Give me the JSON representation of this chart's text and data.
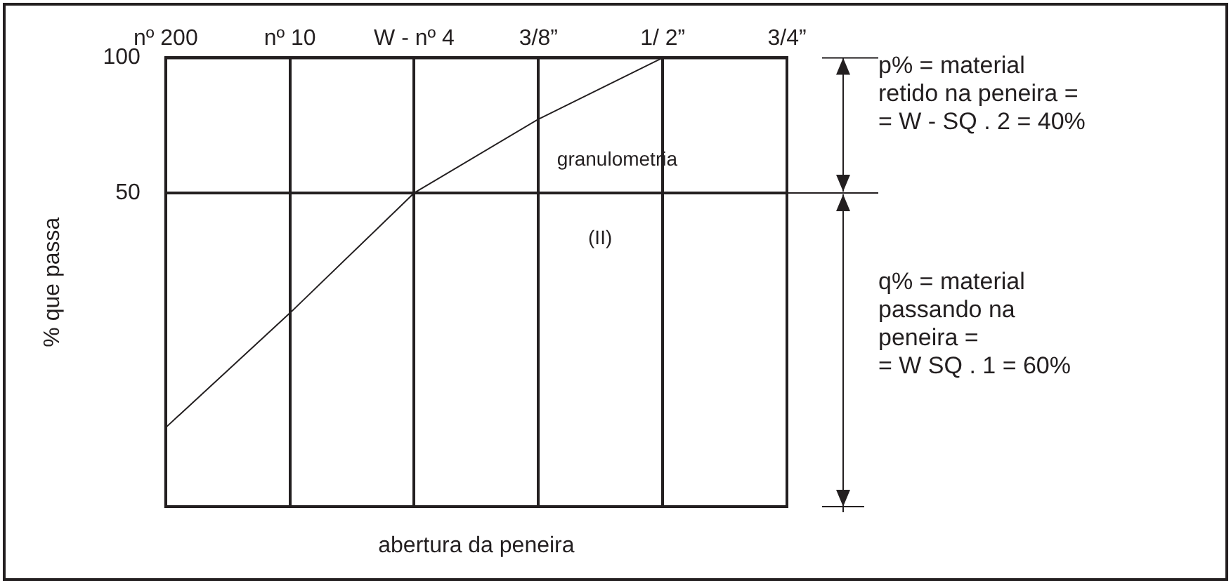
{
  "chart_data": {
    "type": "line",
    "xlabel": "abertura da peneira",
    "ylabel": "% que passa",
    "categories": [
      "nº 200",
      "nº 10",
      "W - nº 4",
      "3/8”",
      "1/ 2”",
      "3/4”"
    ],
    "series": [
      {
        "color": "#231f20",
        "values": [
          15,
          27,
          50,
          73,
          100,
          null
        ]
      }
    ],
    "log": "y",
    "ylim": [
      10,
      100
    ],
    "yticks": [
      50,
      100
    ],
    "grid": true,
    "legend": false,
    "marker": "none",
    "line_style": "solid",
    "annotations": [
      "granulometria",
      "(II)",
      "p% = material\nretido na peneira =\n= W - SQ . 2 = 40%",
      "q% = material\npassando na\npeneira =\n= W SQ . 1 = 60%"
    ]
  }
}
